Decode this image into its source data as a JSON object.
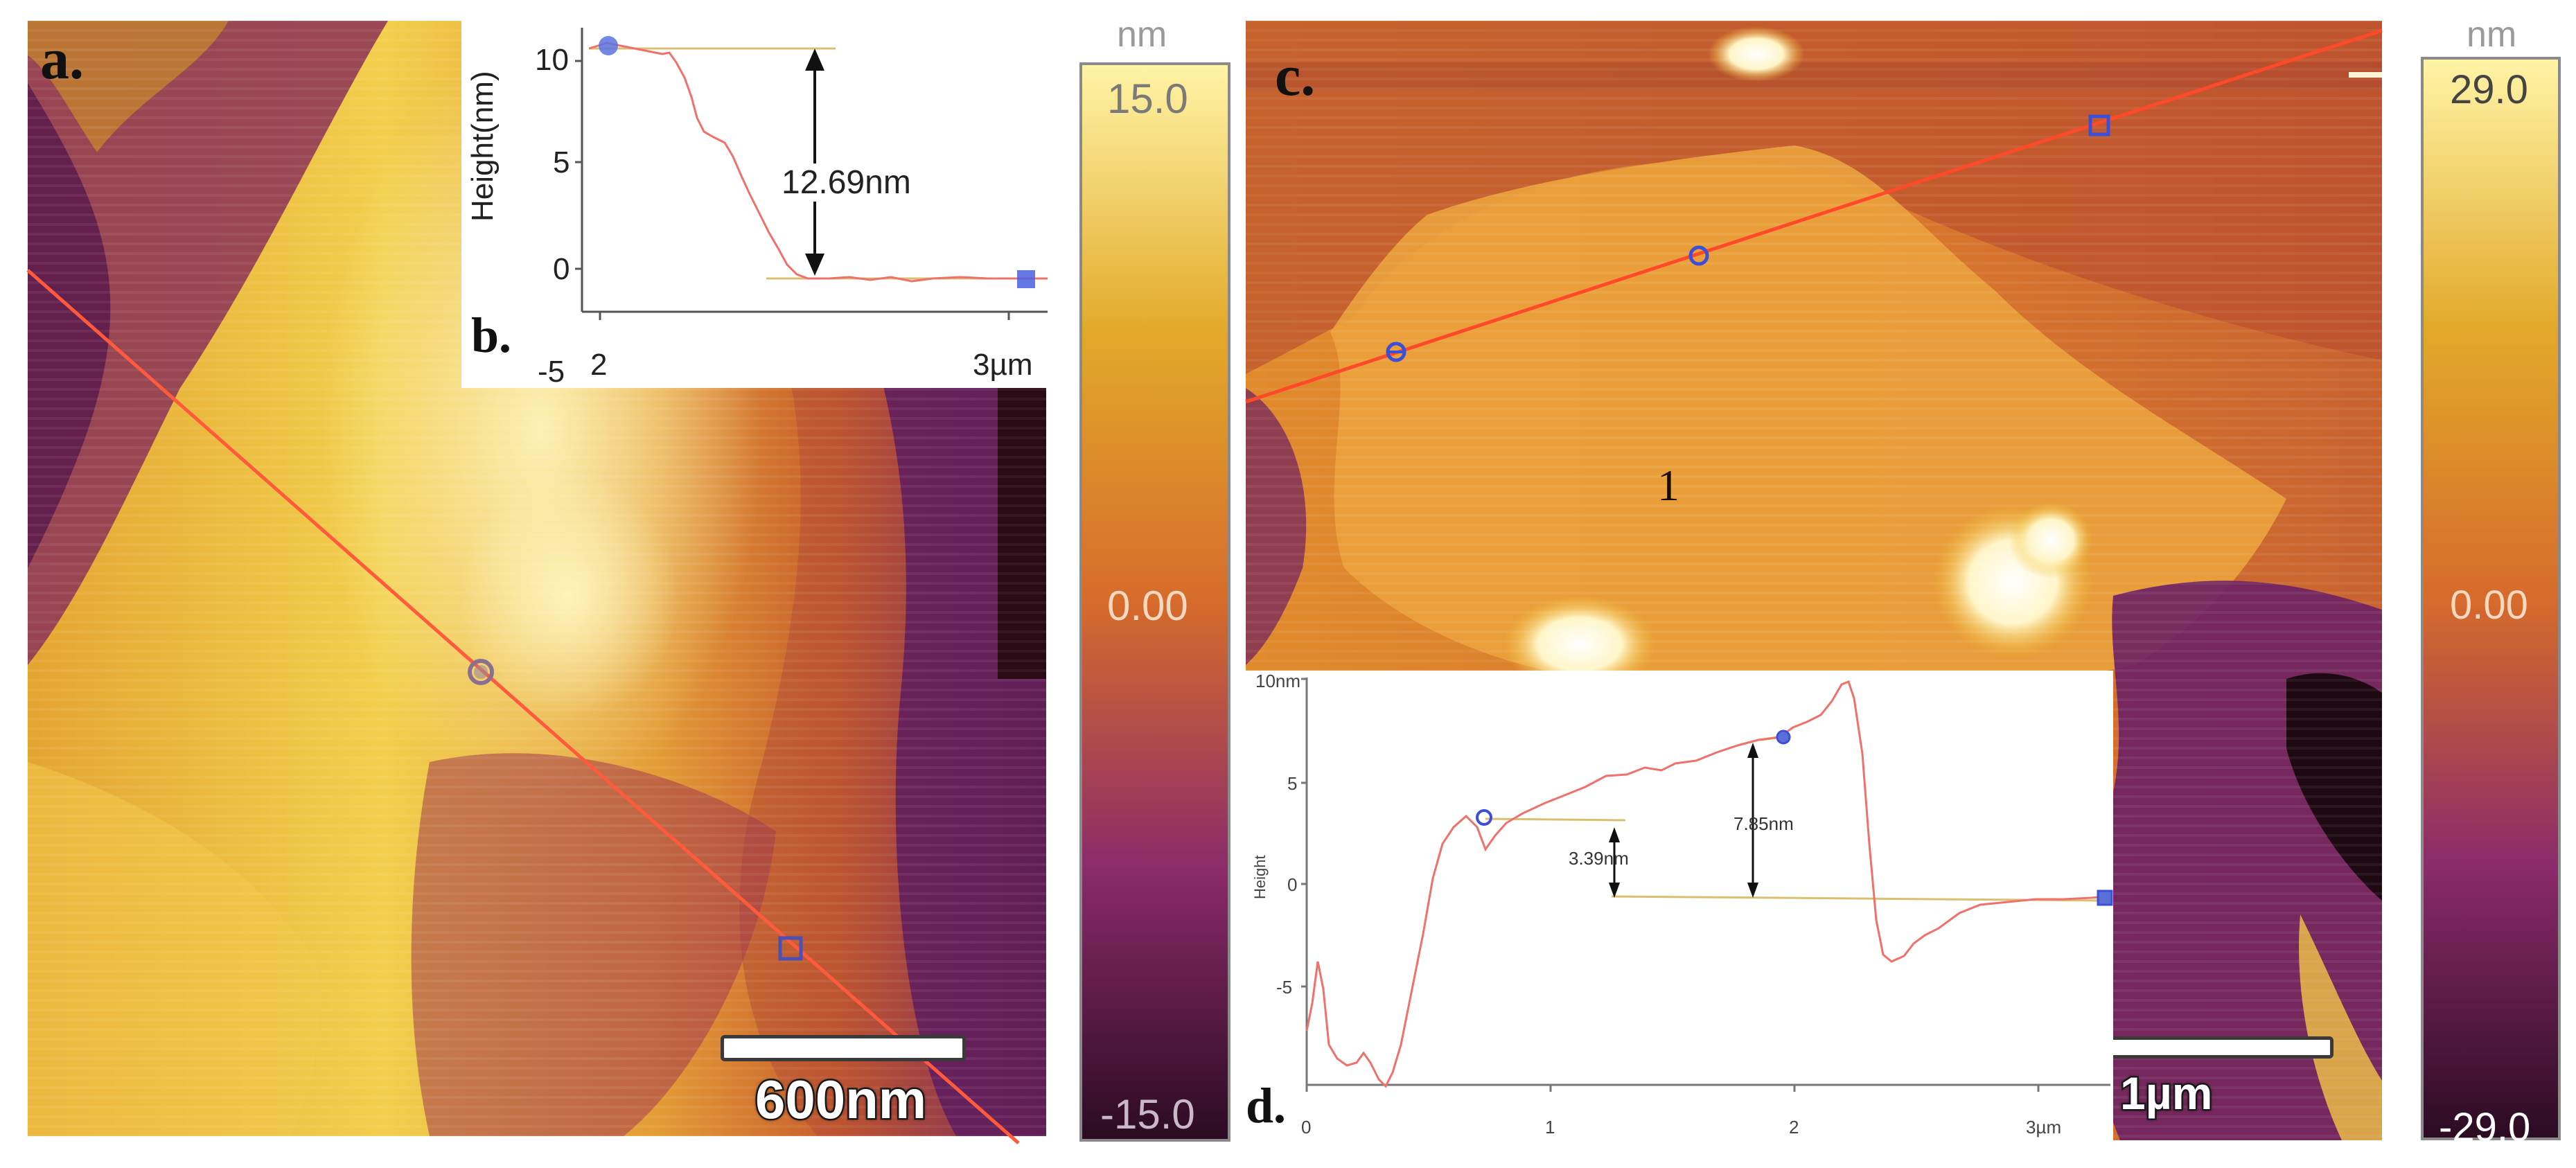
{
  "panels": {
    "a": {
      "label": "a.",
      "scalebar_text": "600nm",
      "colorbar": {
        "unit": "nm",
        "max_label": "15.0",
        "mid_label": "0.00",
        "min_label": "-15.0"
      }
    },
    "b": {
      "label": "b.",
      "ylabel": "Height(nm)",
      "yticks": [
        "10",
        "5",
        "0",
        "-5"
      ],
      "xticks": [
        "2",
        "3µm"
      ],
      "step_label": "12.69nm"
    },
    "c": {
      "label": "c.",
      "region_label": "1",
      "scalebar_text": "1µm",
      "colorbar": {
        "unit": "nm",
        "max_label": "29.0",
        "mid_label": "0.00",
        "min_label": "-29.0"
      }
    },
    "d": {
      "label": "d.",
      "ylabel": "Height",
      "yticks": [
        "10nm",
        "5",
        "0",
        "-5"
      ],
      "xticks": [
        "0",
        "1",
        "2",
        "3µm"
      ],
      "step1_label": "3.39nm",
      "step2_label": "7.85nm"
    }
  },
  "colors": {
    "afm_dark": "#2a0a18",
    "afm_purple": "#6b1f6e",
    "afm_orange": "#d0681f",
    "afm_yellow": "#f0c030",
    "afm_bright": "#fff6b0",
    "profile_line": "#ff5a3c",
    "marker_blue": "#3b4fd8",
    "reference_line": "#d8c070"
  }
}
